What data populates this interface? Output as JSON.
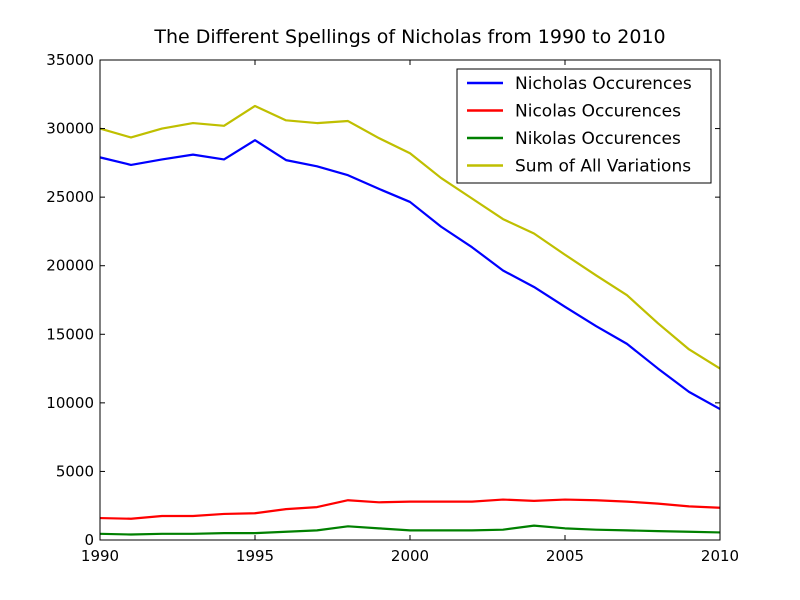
{
  "chart_data": {
    "type": "line",
    "title": "The Different Spellings of Nicholas from 1990 to 2010",
    "xlabel": "",
    "ylabel": "",
    "xlim": [
      1990,
      2010
    ],
    "ylim": [
      0,
      35000
    ],
    "xticks": [
      1990,
      1995,
      2000,
      2005,
      2010
    ],
    "yticks": [
      0,
      5000,
      10000,
      15000,
      20000,
      25000,
      30000,
      35000
    ],
    "grid": false,
    "legend_position": "top-right",
    "x": [
      1990,
      1991,
      1992,
      1993,
      1994,
      1995,
      1996,
      1997,
      1998,
      1999,
      2000,
      2001,
      2002,
      2003,
      2004,
      2005,
      2006,
      2007,
      2008,
      2009,
      2010
    ],
    "series": [
      {
        "name": "Nicholas Occurences",
        "color": "#0000ff",
        "values": [
          27900,
          27350,
          27750,
          28100,
          27750,
          29150,
          27700,
          27250,
          26600,
          25600,
          24650,
          22850,
          21350,
          19650,
          18450,
          17000,
          15600,
          14300,
          12500,
          10800,
          9550
        ]
      },
      {
        "name": "Nicolas Occurences",
        "color": "#ff0000",
        "values": [
          1600,
          1550,
          1750,
          1750,
          1900,
          1950,
          2250,
          2400,
          2900,
          2750,
          2800,
          2800,
          2800,
          2950,
          2850,
          2950,
          2900,
          2800,
          2650,
          2450,
          2350
        ]
      },
      {
        "name": "Nikolas Occurences",
        "color": "#008000",
        "values": [
          450,
          400,
          450,
          450,
          500,
          500,
          600,
          700,
          1000,
          850,
          700,
          700,
          700,
          750,
          1050,
          850,
          750,
          700,
          650,
          600,
          550
        ]
      },
      {
        "name": "Sum of All Variations",
        "color": "#bfbf00",
        "values": [
          30000,
          29350,
          30000,
          30400,
          30200,
          31650,
          30600,
          30400,
          30550,
          29300,
          28200,
          26400,
          24900,
          23400,
          22350,
          20800,
          19300,
          17850,
          15800,
          13900,
          12500
        ]
      }
    ]
  }
}
